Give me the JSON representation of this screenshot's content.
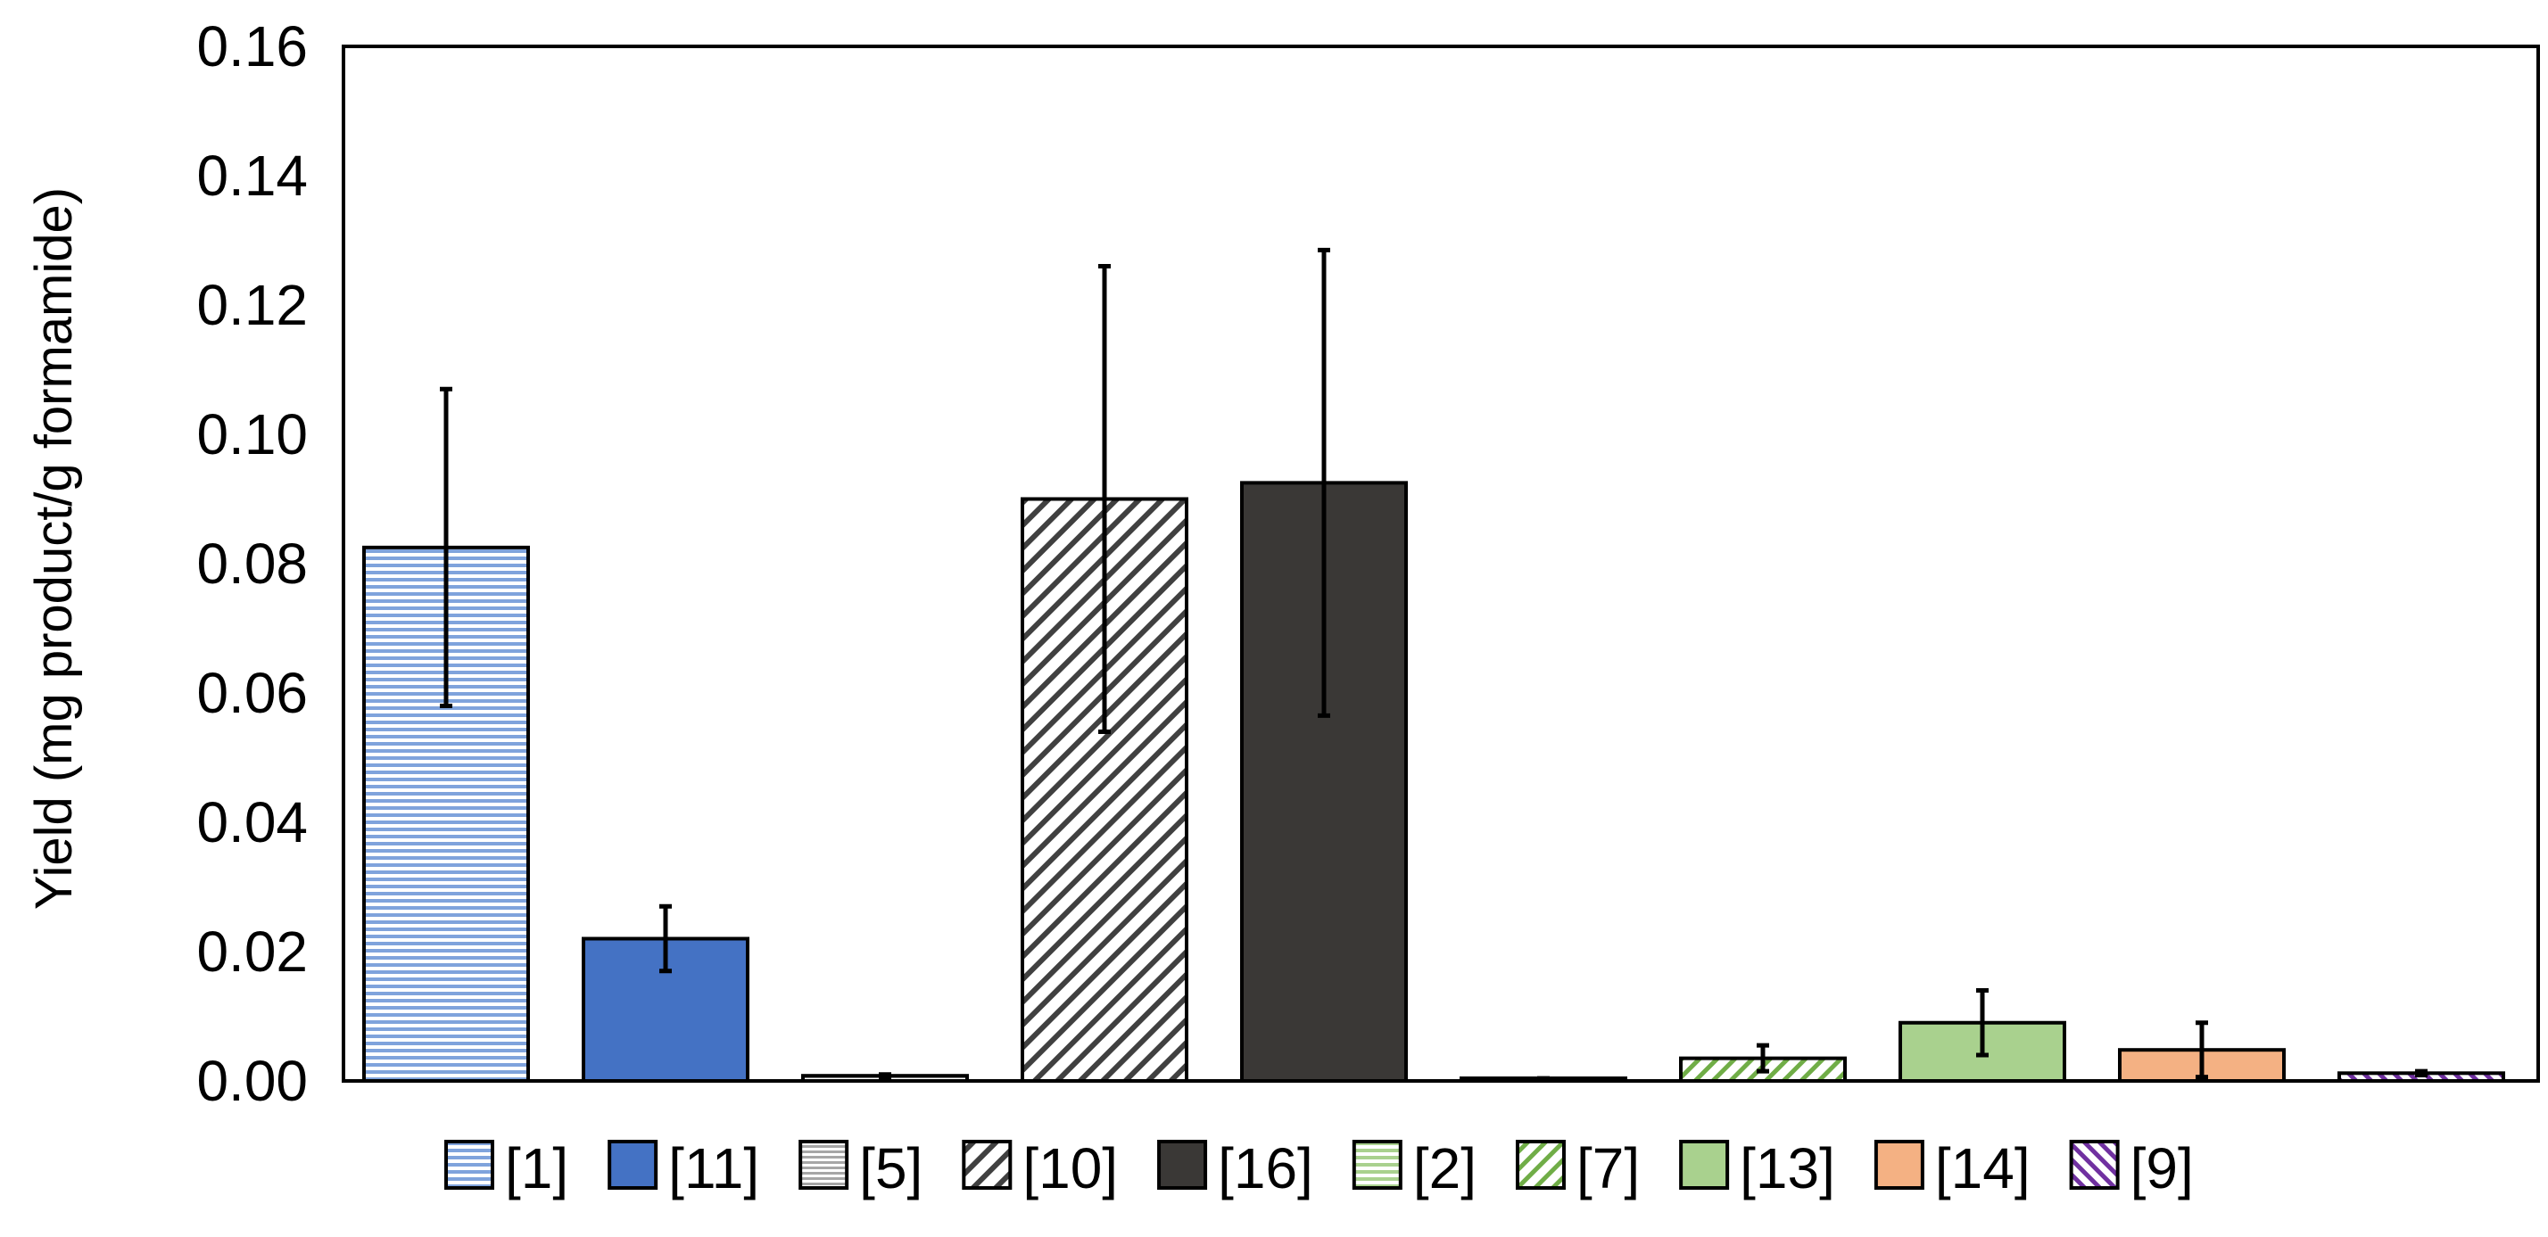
{
  "chart_data": {
    "type": "bar",
    "title": "",
    "xlabel": "",
    "ylabel": "Yield (mg product/g formamide)",
    "ylim": [
      0,
      0.16
    ],
    "yticks": [
      0.0,
      0.02,
      0.04,
      0.06,
      0.08,
      0.1,
      0.12,
      0.14,
      0.16
    ],
    "ytick_labels": [
      "0.00",
      "0.02",
      "0.04",
      "0.06",
      "0.08",
      "0.10",
      "0.12",
      "0.14",
      "0.16"
    ],
    "grid": false,
    "legend_position": "bottom",
    "series": [
      {
        "name": "[1]",
        "value": 0.0825,
        "error": 0.0245,
        "fill": "#7fa3dc",
        "pattern": "hstripes"
      },
      {
        "name": "[11]",
        "value": 0.022,
        "error": 0.005,
        "fill": "#4472c4",
        "pattern": "solid"
      },
      {
        "name": "[5]",
        "value": 0.0008,
        "error": 0.0002,
        "fill": "#a6a6a6",
        "pattern": "hstripes"
      },
      {
        "name": "[10]",
        "value": 0.09,
        "error": 0.036,
        "fill": "#ffffff",
        "pattern": "diag-dark"
      },
      {
        "name": "[16]",
        "value": 0.0925,
        "error": 0.036,
        "fill": "#3a3836",
        "pattern": "solid"
      },
      {
        "name": "[2]",
        "value": 0.0003,
        "error": 0.0001,
        "fill": "#a9d18e",
        "pattern": "hstripes"
      },
      {
        "name": "[7]",
        "value": 0.0035,
        "error": 0.002,
        "fill": "#ffffff",
        "pattern": "diag-green"
      },
      {
        "name": "[13]",
        "value": 0.009,
        "error": 0.005,
        "fill": "#a9d18e",
        "pattern": "solid"
      },
      {
        "name": "[14]",
        "value": 0.0048,
        "error": 0.0042,
        "fill": "#f4b183",
        "pattern": "solid"
      },
      {
        "name": "[9]",
        "value": 0.0012,
        "error": 0.0003,
        "fill": "#ffffff",
        "pattern": "diag-purple"
      }
    ]
  }
}
